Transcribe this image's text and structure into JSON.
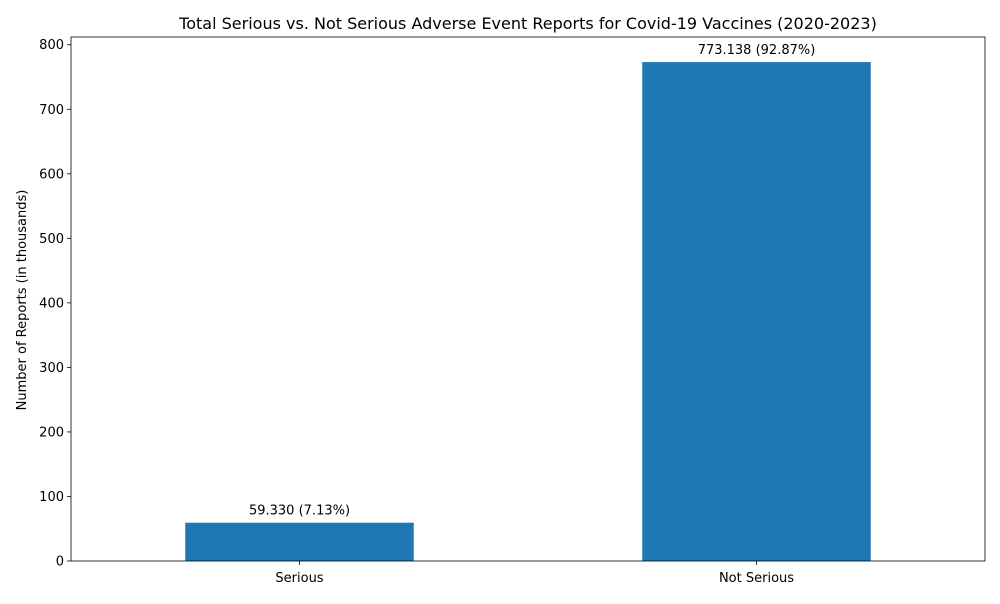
{
  "chart_data": {
    "type": "bar",
    "title": "Total Serious vs. Not Serious Adverse Event Reports for Covid-19 Vaccines (2020-2023)",
    "xlabel": "",
    "ylabel": "Number of Reports (in thousands)",
    "categories": [
      "Serious",
      "Not Serious"
    ],
    "values": [
      59.33,
      773.138
    ],
    "data_labels": [
      "59.330 (7.13%)",
      "773.138 (92.87%)"
    ],
    "ylim": [
      0,
      812
    ],
    "yticks": [
      0,
      100,
      200,
      300,
      400,
      500,
      600,
      700,
      800
    ],
    "bar_color": "#1f77b4",
    "grid": false,
    "legend": "none"
  }
}
